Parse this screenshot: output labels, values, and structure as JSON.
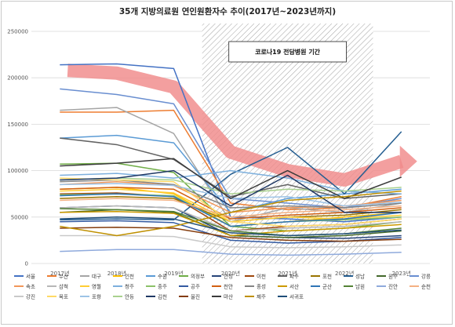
{
  "chart_data": {
    "type": "line",
    "title": "35개 지방의료원 연인원환자수 추이(2017년~2023년까지)",
    "categories": [
      "2017년",
      "2018년",
      "2019년",
      "2020년",
      "2021년",
      "2022년",
      "2023년"
    ],
    "ylim": [
      0,
      250000
    ],
    "yticks": [
      0,
      50000,
      100000,
      150000,
      200000,
      250000
    ],
    "grid": true,
    "legend_position": "bottom",
    "annotation": {
      "label": "코로나19 전담병원 기간",
      "from": "2020년",
      "to": "2022년"
    },
    "trend_arrow": {
      "description": "downward trend",
      "color": "#f08a8a",
      "values": [
        208000,
        205000,
        190000,
        120000,
        100000,
        90000,
        110000
      ]
    },
    "series": [
      {
        "name": "서울",
        "color": "#4472c4",
        "values": [
          214000,
          215000,
          210000,
          50000,
          48000,
          45000,
          50000
        ]
      },
      {
        "name": "부산",
        "color": "#ed7d31",
        "values": [
          163000,
          163000,
          165000,
          65000,
          58000,
          60000,
          72000
        ]
      },
      {
        "name": "대구",
        "color": "#a5a5a5",
        "values": [
          165000,
          168000,
          140000,
          45000,
          60000,
          55000,
          65000
        ]
      },
      {
        "name": "인천",
        "color": "#ffc000",
        "values": [
          80000,
          82000,
          75000,
          40000,
          45000,
          50000,
          55000
        ]
      },
      {
        "name": "수원",
        "color": "#5b9bd5",
        "values": [
          135000,
          138000,
          130000,
          55000,
          70000,
          75000,
          80000
        ]
      },
      {
        "name": "의정부",
        "color": "#70ad47",
        "values": [
          107000,
          108000,
          98000,
          40000,
          35000,
          38000,
          45000
        ]
      },
      {
        "name": "안성",
        "color": "#264478",
        "values": [
          60000,
          62000,
          60000,
          30000,
          28000,
          27000,
          30000
        ]
      },
      {
        "name": "이천",
        "color": "#9e480e",
        "values": [
          75000,
          76000,
          72000,
          35000,
          40000,
          42000,
          48000
        ]
      },
      {
        "name": "파주",
        "color": "#636363",
        "values": [
          135000,
          128000,
          112000,
          72000,
          85000,
          70000,
          75000
        ]
      },
      {
        "name": "포천",
        "color": "#997300",
        "values": [
          70000,
          72000,
          70000,
          45000,
          50000,
          52000,
          58000
        ]
      },
      {
        "name": "성남",
        "color": "#255e91",
        "values": [
          47000,
          48000,
          47000,
          96000,
          125000,
          75000,
          142000
        ]
      },
      {
        "name": "원주",
        "color": "#43682b",
        "values": [
          55000,
          58000,
          55000,
          30000,
          28000,
          30000,
          35000
        ]
      },
      {
        "name": "강릉",
        "color": "#698ed0",
        "values": [
          188000,
          182000,
          172000,
          70000,
          65000,
          60000,
          70000
        ]
      },
      {
        "name": "속초",
        "color": "#f1975a",
        "values": [
          85000,
          88000,
          84000,
          55000,
          60000,
          62000,
          68000
        ]
      },
      {
        "name": "삼척",
        "color": "#b7b7b7",
        "values": [
          60000,
          62000,
          60000,
          35000,
          38000,
          40000,
          45000
        ]
      },
      {
        "name": "영월",
        "color": "#ffcd33",
        "values": [
          78000,
          80000,
          76000,
          45000,
          50000,
          48000,
          52000
        ]
      },
      {
        "name": "청주",
        "color": "#7cafdd",
        "values": [
          95000,
          97000,
          92000,
          100000,
          92000,
          78000,
          75000
        ]
      },
      {
        "name": "충주",
        "color": "#8cc168",
        "values": [
          74000,
          75000,
          73000,
          40000,
          45000,
          47000,
          50000
        ]
      },
      {
        "name": "공주",
        "color": "#335aa1",
        "values": [
          45000,
          46000,
          44000,
          25000,
          22000,
          24000,
          28000
        ]
      },
      {
        "name": "천안",
        "color": "#d26012",
        "values": [
          80000,
          82000,
          80000,
          48000,
          52000,
          55000,
          60000
        ]
      },
      {
        "name": "홍성",
        "color": "#848484",
        "values": [
          88000,
          90000,
          85000,
          60000,
          62000,
          60000,
          65000
        ]
      },
      {
        "name": "서산",
        "color": "#cc9a00",
        "values": [
          55000,
          56000,
          54000,
          30000,
          35000,
          38000,
          42000
        ]
      },
      {
        "name": "군산",
        "color": "#2e75b6",
        "values": [
          73000,
          75000,
          72000,
          40000,
          45000,
          48000,
          55000
        ]
      },
      {
        "name": "남원",
        "color": "#548235",
        "values": [
          59000,
          58000,
          56000,
          35000,
          30000,
          32000,
          38000
        ]
      },
      {
        "name": "진안",
        "color": "#8faadc",
        "values": [
          13000,
          15000,
          15000,
          10000,
          9000,
          10000,
          12000
        ]
      },
      {
        "name": "순천",
        "color": "#f4b183",
        "values": [
          68000,
          70000,
          68000,
          50000,
          55000,
          58000,
          62000
        ]
      },
      {
        "name": "강진",
        "color": "#c9c9c9",
        "values": [
          30000,
          30000,
          29000,
          18000,
          17000,
          18000,
          20000
        ]
      },
      {
        "name": "목포",
        "color": "#ffd966",
        "values": [
          92000,
          90000,
          88000,
          45000,
          40000,
          42000,
          48000
        ]
      },
      {
        "name": "포항",
        "color": "#9dc3e6",
        "values": [
          85000,
          86000,
          84000,
          70000,
          72000,
          62000,
          66000
        ]
      },
      {
        "name": "안동",
        "color": "#a9d18e",
        "values": [
          90000,
          92000,
          90000,
          75000,
          80000,
          78000,
          82000
        ]
      },
      {
        "name": "김천",
        "color": "#1f3864",
        "values": [
          90000,
          92000,
          100000,
          62000,
          95000,
          55000,
          55000
        ]
      },
      {
        "name": "울진",
        "color": "#843c0c",
        "values": [
          38000,
          39000,
          38000,
          28000,
          25000,
          24000,
          26000
        ]
      },
      {
        "name": "마산",
        "color": "#3b3b3b",
        "values": [
          105000,
          108000,
          113000,
          70000,
          100000,
          70000,
          93000
        ]
      },
      {
        "name": "제주",
        "color": "#bf9000",
        "values": [
          40000,
          30000,
          40000,
          55000,
          68000,
          72000,
          78000
        ]
      },
      {
        "name": "서귀포",
        "color": "#1f4e79",
        "values": [
          48000,
          50000,
          48000,
          33000,
          30000,
          32000,
          36000
        ]
      }
    ]
  }
}
